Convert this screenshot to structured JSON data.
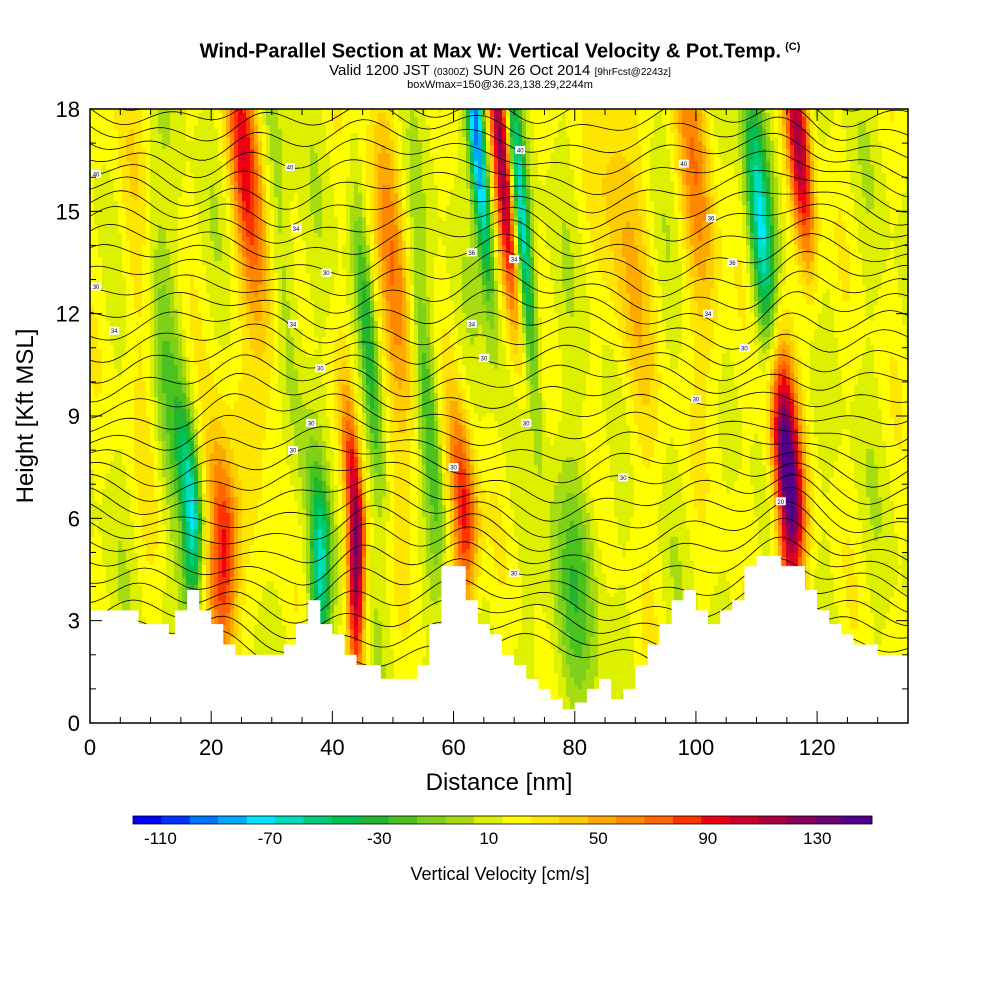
{
  "header": {
    "title": "Wind-Parallel Section at Max W: Vertical Velocity & Pot.Temp.",
    "copyright": "(C)",
    "valid_prefix": "Valid 1200 JST",
    "valid_utc": "(0300Z)",
    "valid_date": "SUN 26 Oct 2014",
    "forecast": "[9hrFcst@2243z]",
    "box_info": "boxWmax=150@36.23,138.29,2244m"
  },
  "chart_data": {
    "type": "heatmap",
    "xlabel": "Distance [nm]",
    "ylabel": "Height [Kft MSL]",
    "xlim": [
      0,
      135
    ],
    "ylim": [
      0,
      18
    ],
    "x_ticks": [
      "0",
      "20",
      "40",
      "60",
      "80",
      "100",
      "120"
    ],
    "y_ticks": [
      "0",
      "3",
      "6",
      "9",
      "12",
      "15",
      "18"
    ],
    "colorbar": {
      "label": "Vertical Velocity [cm/s]",
      "range": [
        -120,
        150
      ],
      "step": 10,
      "tick_labels": [
        "-110",
        "-70",
        "-30",
        "10",
        "50",
        "90",
        "130"
      ],
      "colors": [
        "#0000ff",
        "#0033ff",
        "#0077ff",
        "#00aaff",
        "#00e5ff",
        "#00ddbb",
        "#00cc77",
        "#00c050",
        "#22b530",
        "#4cc21e",
        "#7dd118",
        "#a6dc10",
        "#dcf000",
        "#ffff00",
        "#ffe600",
        "#ffcc00",
        "#ffaa00",
        "#ff8800",
        "#ff6600",
        "#ff3300",
        "#f00010",
        "#d0002a",
        "#aa0040",
        "#8a0058",
        "#6a0074",
        "#50008c"
      ]
    },
    "terrain_kft": [
      [
        0,
        3.3
      ],
      [
        2,
        3.3
      ],
      [
        4,
        3.3
      ],
      [
        6,
        3.3
      ],
      [
        8,
        2.9
      ],
      [
        10,
        2.9
      ],
      [
        12,
        2.9
      ],
      [
        13,
        2.6
      ],
      [
        14,
        3.3
      ],
      [
        16,
        3.9
      ],
      [
        18,
        3.3
      ],
      [
        20,
        2.9
      ],
      [
        22,
        2.3
      ],
      [
        24,
        2.0
      ],
      [
        26,
        2.0
      ],
      [
        28,
        2.0
      ],
      [
        30,
        2.0
      ],
      [
        32,
        2.3
      ],
      [
        34,
        2.9
      ],
      [
        36,
        3.6
      ],
      [
        38,
        2.9
      ],
      [
        40,
        2.6
      ],
      [
        42,
        2.0
      ],
      [
        44,
        1.7
      ],
      [
        46,
        1.7
      ],
      [
        48,
        1.3
      ],
      [
        50,
        1.3
      ],
      [
        52,
        1.3
      ],
      [
        54,
        1.7
      ],
      [
        56,
        2.9
      ],
      [
        58,
        4.6
      ],
      [
        60,
        4.6
      ],
      [
        62,
        3.6
      ],
      [
        64,
        2.9
      ],
      [
        66,
        2.6
      ],
      [
        68,
        2.0
      ],
      [
        70,
        1.7
      ],
      [
        72,
        1.3
      ],
      [
        74,
        1.0
      ],
      [
        76,
        0.7
      ],
      [
        78,
        0.4
      ],
      [
        80,
        0.6
      ],
      [
        82,
        1.0
      ],
      [
        84,
        1.3
      ],
      [
        86,
        0.7
      ],
      [
        88,
        1.0
      ],
      [
        90,
        1.7
      ],
      [
        92,
        2.3
      ],
      [
        94,
        2.9
      ],
      [
        96,
        3.6
      ],
      [
        98,
        3.9
      ],
      [
        100,
        3.3
      ],
      [
        102,
        2.9
      ],
      [
        104,
        3.3
      ],
      [
        106,
        3.6
      ],
      [
        108,
        4.6
      ],
      [
        110,
        4.9
      ],
      [
        112,
        4.9
      ],
      [
        114,
        4.6
      ],
      [
        116,
        4.6
      ],
      [
        118,
        3.9
      ],
      [
        120,
        3.3
      ],
      [
        122,
        2.9
      ],
      [
        124,
        2.6
      ],
      [
        126,
        2.3
      ],
      [
        128,
        2.3
      ],
      [
        130,
        2.0
      ],
      [
        132,
        2.0
      ],
      [
        134,
        2.0
      ],
      [
        135,
        2.0
      ]
    ],
    "updrafts": [
      {
        "x": 22,
        "h": 5,
        "w": 85,
        "sx": 1.8,
        "sy": 1.4
      },
      {
        "x": 44,
        "h": 5,
        "w": 110,
        "sx": 1.0,
        "sy": 1.6
      },
      {
        "x": 62,
        "h": 6,
        "w": 75,
        "sx": 1.5,
        "sy": 1.3
      },
      {
        "x": 68,
        "h": 17,
        "w": 110,
        "sx": 1.2,
        "sy": 2.2
      },
      {
        "x": 115,
        "h": 7.5,
        "w": 145,
        "sx": 1.6,
        "sy": 1.6
      },
      {
        "x": 117,
        "h": 17,
        "w": 90,
        "sx": 1.3,
        "sy": 1.6
      },
      {
        "x": 27,
        "h": 15,
        "w": 40,
        "sx": 2.2,
        "sy": 2.8
      },
      {
        "x": 50,
        "h": 13,
        "w": 40,
        "sx": 2.0,
        "sy": 2.5
      },
      {
        "x": 88,
        "h": 15,
        "w": 30,
        "sx": 2.5,
        "sy": 3.0
      },
      {
        "x": 100,
        "h": 16,
        "w": 40,
        "sx": 2.0,
        "sy": 2.5
      },
      {
        "x": 25,
        "h": 17,
        "w": 35,
        "sx": 1.5,
        "sy": 1.8
      },
      {
        "x": 8,
        "h": 14,
        "w": 20,
        "sx": 2.5,
        "sy": 3.0
      }
    ],
    "downdrafts": [
      {
        "x": 17,
        "h": 6,
        "w": -80,
        "sx": 1.2,
        "sy": 1.3
      },
      {
        "x": 38,
        "h": 4.5,
        "w": -70,
        "sx": 1.2,
        "sy": 1.2
      },
      {
        "x": 64,
        "h": 17,
        "w": -110,
        "sx": 1.0,
        "sy": 1.8
      },
      {
        "x": 71,
        "h": 15,
        "w": -90,
        "sx": 1.0,
        "sy": 2.0
      },
      {
        "x": 111,
        "h": 14,
        "w": -80,
        "sx": 1.4,
        "sy": 2.0
      },
      {
        "x": 56,
        "h": 9,
        "w": -40,
        "sx": 1.2,
        "sy": 2.0
      },
      {
        "x": 46,
        "h": 11,
        "w": -40,
        "sx": 1.0,
        "sy": 2.0
      },
      {
        "x": 12,
        "h": 11,
        "w": -30,
        "sx": 2.0,
        "sy": 2.5
      },
      {
        "x": 80,
        "h": 4,
        "w": -30,
        "sx": 3.0,
        "sy": 1.5
      },
      {
        "x": 32,
        "h": 13,
        "w": -25,
        "sx": 1.5,
        "sy": 2.5
      }
    ],
    "contour_labels": [
      {
        "text": "40",
        "x": 1,
        "h": 16.1
      },
      {
        "text": "40",
        "x": 33,
        "h": 16.3
      },
      {
        "text": "34",
        "x": 34,
        "h": 14.5
      },
      {
        "text": "30",
        "x": 39,
        "h": 13.2
      },
      {
        "text": "30",
        "x": 1,
        "h": 12.8
      },
      {
        "text": "34",
        "x": 33.5,
        "h": 11.7
      },
      {
        "text": "30",
        "x": 38,
        "h": 10.4
      },
      {
        "text": "34",
        "x": 4,
        "h": 11.5
      },
      {
        "text": "30",
        "x": 36.5,
        "h": 8.8
      },
      {
        "text": "30",
        "x": 33.5,
        "h": 8.0
      },
      {
        "text": "40",
        "x": 71,
        "h": 16.8
      },
      {
        "text": "36",
        "x": 63,
        "h": 13.8
      },
      {
        "text": "34",
        "x": 70,
        "h": 13.6
      },
      {
        "text": "34",
        "x": 63,
        "h": 11.7
      },
      {
        "text": "30",
        "x": 65,
        "h": 10.7
      },
      {
        "text": "30",
        "x": 72,
        "h": 8.8
      },
      {
        "text": "30",
        "x": 60,
        "h": 7.5
      },
      {
        "text": "30",
        "x": 70,
        "h": 4.4
      },
      {
        "text": "40",
        "x": 98,
        "h": 16.4
      },
      {
        "text": "36",
        "x": 102.5,
        "h": 14.8
      },
      {
        "text": "36",
        "x": 106,
        "h": 13.5
      },
      {
        "text": "34",
        "x": 102,
        "h": 12.0
      },
      {
        "text": "30",
        "x": 108,
        "h": 11.0
      },
      {
        "text": "30",
        "x": 100,
        "h": 9.5
      },
      {
        "text": "30",
        "x": 88,
        "h": 7.2
      },
      {
        "text": "20",
        "x": 114,
        "h": 6.5
      }
    ]
  }
}
